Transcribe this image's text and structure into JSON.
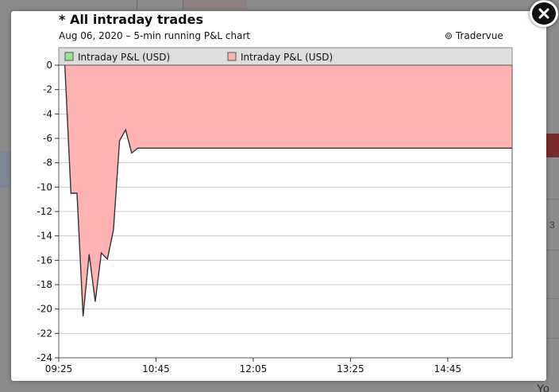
{
  "window": {
    "close_icon": "close-x-icon"
  },
  "chart": {
    "title": "* All intraday trades",
    "subtitle": "Aug 06, 2020 – 5-min running P&L chart",
    "brand": "⊚ Tradervue"
  },
  "background_page": {
    "partial_text_right": "l 3",
    "partial_text_bottom": "Yo"
  },
  "colors": {
    "positive_fill": "#99e699",
    "negative_fill": "#ffb3b3",
    "line": "#333333",
    "legend_bg": "#dddddd",
    "grid": "#c8c8c8"
  },
  "chart_data": {
    "type": "area",
    "legend": [
      {
        "label": "Intraday P&L (USD)",
        "color": "#99e699"
      },
      {
        "label": "Intraday P&L (USD)",
        "color": "#ffb3b3"
      }
    ],
    "xlabel": "",
    "ylabel": "",
    "ylim": [
      -24,
      0
    ],
    "yticks": [
      0,
      -2,
      -4,
      -6,
      -8,
      -10,
      -12,
      -14,
      -16,
      -18,
      -20,
      -22,
      -24
    ],
    "xlim_minutes": [
      565,
      938
    ],
    "xticks": [
      {
        "label": "09:25",
        "minutes": 565
      },
      {
        "label": "10:45",
        "minutes": 645
      },
      {
        "label": "12:05",
        "minutes": 725
      },
      {
        "label": "13:25",
        "minutes": 805
      },
      {
        "label": "14:45",
        "minutes": 885
      }
    ],
    "series": [
      {
        "name": "Intraday P&L (USD)",
        "x_minutes": [
          570,
          575,
          580,
          585,
          590,
          595,
          600,
          605,
          610,
          615,
          620,
          625,
          630,
          635,
          640,
          938
        ],
        "values": [
          0,
          -10.5,
          -10.5,
          -20.6,
          -15.5,
          -19.4,
          -15.4,
          -15.9,
          -13.5,
          -6.2,
          -5.3,
          -7.2,
          -6.8,
          -6.8,
          -6.8,
          -6.8
        ]
      }
    ],
    "grid": true,
    "legend_position": "top"
  }
}
